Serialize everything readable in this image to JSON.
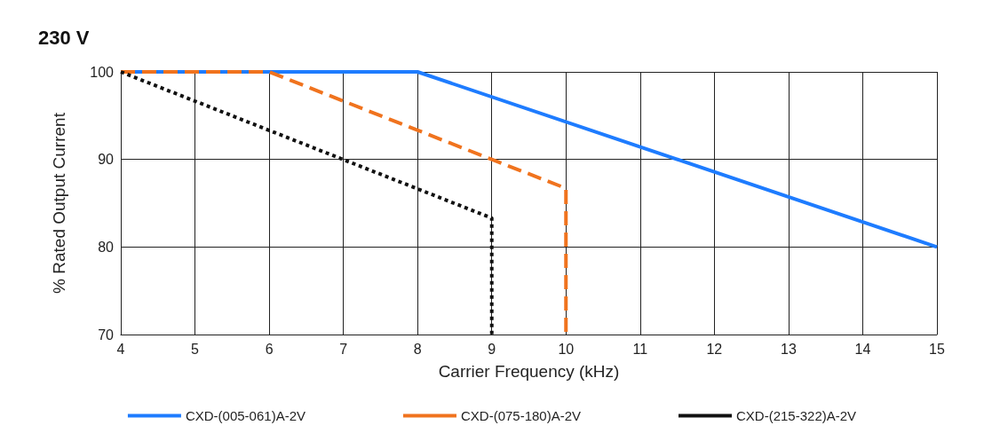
{
  "chart_data": {
    "type": "line",
    "title": "230 V",
    "xlabel": "Carrier Frequency (kHz)",
    "ylabel": "% Rated Output Current",
    "xlim": [
      4,
      15
    ],
    "xticks": [
      4,
      5,
      6,
      7,
      8,
      9,
      10,
      11,
      12,
      13,
      14,
      15
    ],
    "ylim": [
      70,
      100
    ],
    "yticks": [
      70,
      80,
      90,
      100
    ],
    "grid": true,
    "legend": "bottom",
    "marker": "none",
    "series": [
      {
        "name": "CXD-(005-061)A-2V",
        "color": "#1e7cff",
        "line_style": "solid",
        "x": [
          4,
          8,
          15
        ],
        "values": [
          100,
          100,
          80
        ]
      },
      {
        "name": "CXD-(075-180)A-2V",
        "color": "#f0731e",
        "line_style": "dashed",
        "x": [
          4,
          6,
          9,
          10,
          10
        ],
        "values": [
          100,
          100,
          90,
          86.7,
          70
        ]
      },
      {
        "name": "CXD-(215-322)A-2V",
        "color": "#111111",
        "line_style": "dotted",
        "x": [
          4,
          9,
          9
        ],
        "values": [
          100,
          83.3,
          70
        ]
      }
    ]
  }
}
